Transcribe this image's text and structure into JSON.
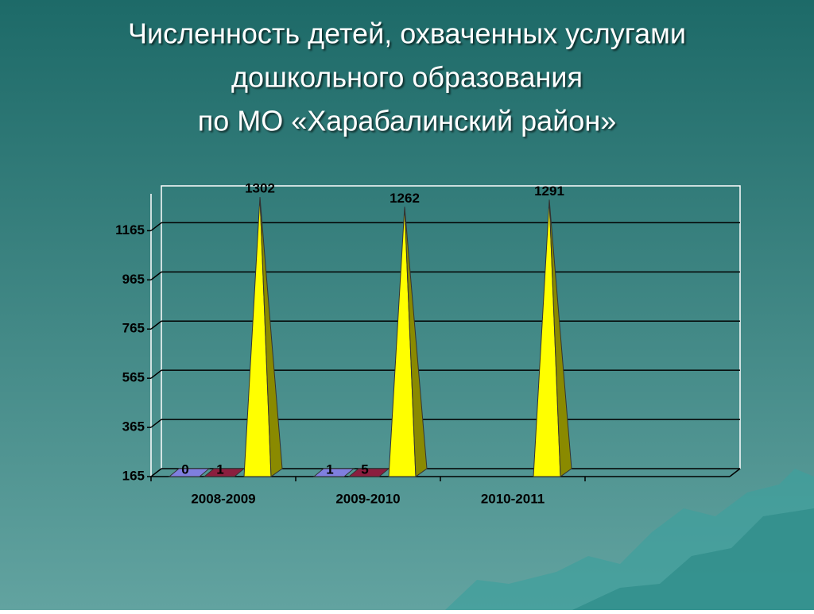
{
  "chart_data": {
    "type": "bar3d-pyramid",
    "title_lines": [
      "Численность детей, охваченных услугами",
      "дошкольного образования",
      "по МО «Харабалинский район»"
    ],
    "categories": [
      "2008-2009",
      "2009-2010",
      "2010-2011",
      null
    ],
    "series": [
      {
        "color": "#7f7fdf",
        "values": [
          0,
          1,
          null,
          null
        ]
      },
      {
        "color": "#8b1e3f",
        "values": [
          1,
          5,
          null,
          null
        ]
      },
      {
        "color": "#ffff00",
        "values": [
          1302,
          1262,
          1291,
          null
        ]
      }
    ],
    "ylim": [
      165,
      1315
    ],
    "yticks": [
      165,
      365,
      565,
      765,
      965,
      1165
    ],
    "grid": true
  }
}
